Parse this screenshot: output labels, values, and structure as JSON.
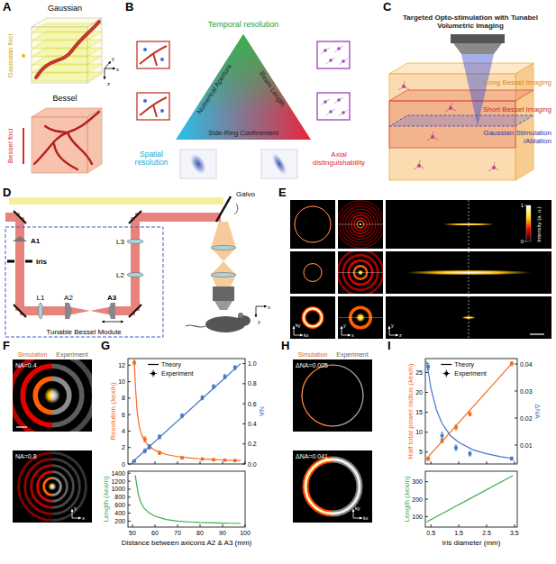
{
  "panels": {
    "A": {
      "letter": "A",
      "top_title": "Gaussian",
      "top_foci": "Gaussian foci",
      "bottom_title": "Bessel",
      "bottom_foci": "Bessel foci",
      "axes": [
        "x",
        "y",
        "z"
      ]
    },
    "B": {
      "letter": "B",
      "top": "Temporal resolution",
      "left": "Spatial resolution",
      "right": "Axial distinguishability",
      "left_edge": "Numerical Aperture",
      "right_edge": "Beam Length",
      "bottom_edge": "Side-Ring Confinement"
    },
    "C": {
      "letter": "C",
      "title": "Targeted Opto-stimulation with Tunabel Volumetric Imaging",
      "long": "Long Bessel Imaging",
      "short": "Short Bessel Imaging",
      "stimulation": "Gaussian Stimulation /Ablation"
    },
    "D": {
      "letter": "D",
      "a1": "A1",
      "iris": "Iris",
      "l1": "L1",
      "a2": "A2",
      "a3": "A3",
      "l2": "L2",
      "l3": "L3",
      "galvo": "Galvo",
      "module": "Tunable Bessel Module",
      "axes": [
        "x",
        "y"
      ]
    },
    "E": {
      "letter": "E",
      "colorbar": {
        "label": "Intensity (a. u.)",
        "range": [
          0,
          1
        ],
        "ticks": [
          0,
          1
        ]
      },
      "axes": [
        [
          "kx",
          "ky"
        ],
        [
          "x",
          "y"
        ],
        [
          "z",
          "y"
        ]
      ]
    },
    "F": {
      "letter": "F",
      "left": "Simulation",
      "right": "Experiment",
      "labels": [
        "NA=0.4",
        "NA=0.8"
      ],
      "axes": [
        "x",
        "y"
      ]
    },
    "G": {
      "letter": "G"
    },
    "H": {
      "letter": "H",
      "left": "Simulation",
      "right": "Experiment",
      "labels": [
        "ΔNA=0.005",
        "ΔNA=0.041"
      ],
      "axes": [
        "kx",
        "ky"
      ]
    },
    "I": {
      "letter": "I"
    }
  },
  "chart_data": [
    {
      "type": "line",
      "ylabel": "Resolution (λex/n)",
      "y2label": "NA",
      "xlim": [
        48,
        100
      ],
      "xticks": [
        50,
        60,
        70,
        80,
        90,
        100
      ],
      "ylim": [
        0,
        12.8
      ],
      "yticks": [
        0,
        2,
        4,
        6,
        8,
        10,
        12
      ],
      "y2lim": [
        0,
        1.05
      ],
      "y2ticks": [
        {
          "value": 0,
          "label": "0.0"
        },
        0.2,
        0.4,
        0.6,
        0.8,
        {
          "value": 1,
          "label": "1.0"
        }
      ],
      "tick_labels": "y",
      "legend": "upper left",
      "series": [
        {
          "name": "Theory",
          "type": "line",
          "color": "#f26b21",
          "x": [
            50.8,
            51.3,
            52,
            53,
            54,
            55,
            57,
            60,
            65,
            70,
            75,
            80,
            85,
            90,
            95,
            98
          ],
          "values": [
            12.6,
            9.5,
            6.6,
            4.6,
            3.6,
            3.0,
            2.25,
            1.65,
            1.15,
            0.9,
            0.75,
            0.63,
            0.55,
            0.49,
            0.44,
            0.42
          ]
        },
        {
          "name": "Experiment",
          "type": "scatter",
          "marker": "square",
          "color": "#f26b21",
          "x": [
            50.8,
            55.5,
            57.5,
            62,
            72,
            81,
            86,
            91,
            95.5
          ],
          "values": [
            12.3,
            3.0,
            2.1,
            1.35,
            0.75,
            0.6,
            0.52,
            0.47,
            0.42
          ],
          "errors": [
            0.25,
            0.3,
            0.25,
            0.2,
            0.1,
            0.08,
            0.06,
            0.05,
            0.05
          ],
          "x_errors": [
            0.5,
            0.8,
            0.8,
            0.5,
            0.5,
            0.5,
            0.5,
            0.5,
            0.5
          ]
        },
        {
          "type": "line",
          "axis": "y2",
          "color": "#4477c4",
          "x": [
            50,
            98
          ],
          "values": [
            0.02,
            1.0
          ]
        },
        {
          "type": "scatter",
          "marker": "square",
          "axis": "y2",
          "color": "#4477c4",
          "x": [
            50.8,
            55.5,
            57.5,
            62,
            72,
            81,
            86,
            91,
            95.5
          ],
          "values": [
            0.03,
            0.13,
            0.17,
            0.27,
            0.48,
            0.66,
            0.77,
            0.87,
            0.96
          ],
          "errors": [
            0.01,
            0.02,
            0.02,
            0.02,
            0.02,
            0.02,
            0.02,
            0.02,
            0.02
          ],
          "x_errors": [
            0.5,
            0.8,
            0.8,
            0.5,
            0.5,
            0.5,
            0.5,
            0.5,
            0.5
          ]
        }
      ]
    },
    {
      "type": "line",
      "ylabel": "Length (λex/n)",
      "xlabel": "Distance between axicons A2 & A3 (mm)",
      "xlim": [
        48,
        100
      ],
      "xticks": [
        50,
        60,
        70,
        80,
        90,
        100
      ],
      "ylim": [
        50,
        1450
      ],
      "yticks": [
        200,
        400,
        600,
        800,
        1000,
        1200,
        1400
      ],
      "series": [
        {
          "type": "line",
          "color": "#3aae49",
          "x": [
            51.2,
            51.8,
            52.5,
            53.5,
            55,
            57,
            60,
            65,
            70,
            75,
            80,
            90,
            98
          ],
          "values": [
            1350,
            1150,
            900,
            700,
            530,
            420,
            320,
            240,
            200,
            180,
            165,
            150,
            140
          ]
        }
      ]
    },
    {
      "type": "line",
      "ylabel": "Half total power radius (λex/n)",
      "y2label": "ΔNA",
      "xlim": [
        0.3,
        3.6
      ],
      "xticks": [
        0.5,
        1.5,
        2.5,
        3.5
      ],
      "ylim": [
        2,
        28.5
      ],
      "yticks": [
        5,
        10,
        15,
        20,
        25
      ],
      "y2lim": [
        0.003,
        0.042
      ],
      "y2ticks": [
        0.01,
        0.02,
        0.03,
        0.04
      ],
      "tick_labels": "y",
      "legend": "upper left",
      "series": [
        {
          "name": "Theory",
          "type": "line",
          "color": "#f26b21",
          "x": [
            0.35,
            3.45
          ],
          "values": [
            3.4,
            27.6
          ]
        },
        {
          "name": "Experiment",
          "type": "scatter",
          "marker": "square",
          "color": "#f26b21",
          "x": [
            0.4,
            0.9,
            1.4,
            1.9,
            3.4
          ],
          "values": [
            3.3,
            7.8,
            11.2,
            14.6,
            27.2
          ],
          "errors": [
            0.4,
            0.5,
            0.6,
            0.5,
            0.5
          ],
          "x_errors": [
            0.05,
            0.05,
            0.05,
            0.05,
            0.05
          ]
        },
        {
          "type": "line",
          "axis": "y2",
          "color": "#4477c4",
          "x": [
            0.35,
            0.5,
            0.7,
            0.9,
            1.2,
            1.5,
            2,
            2.5,
            3,
            3.45
          ],
          "values": [
            0.041,
            0.031,
            0.023,
            0.018,
            0.0135,
            0.011,
            0.0083,
            0.0068,
            0.0057,
            0.005
          ]
        },
        {
          "type": "scatter",
          "marker": "square",
          "axis": "y2",
          "color": "#4477c4",
          "x": [
            0.4,
            0.9,
            1.4,
            1.9,
            3.4
          ],
          "values": [
            0.039,
            0.0135,
            0.009,
            0.0068,
            0.005
          ],
          "errors": [
            0.0012,
            0.0012,
            0.001,
            0.0008,
            0.0006
          ],
          "x_errors": [
            0.05,
            0.05,
            0.05,
            0.05,
            0.05
          ]
        }
      ]
    },
    {
      "type": "line",
      "ylabel": "Length (λex/n)",
      "xlabel": "Iris diameter (mm)",
      "xlim": [
        0.3,
        3.6
      ],
      "xticks": [
        0.5,
        1.5,
        2.5,
        3.5
      ],
      "ylim": [
        40,
        360
      ],
      "yticks": [
        100,
        200,
        300
      ],
      "series": [
        {
          "type": "line",
          "color": "#3aae49",
          "x": [
            0.35,
            3.45
          ],
          "values": [
            70,
            335
          ]
        }
      ]
    }
  ]
}
